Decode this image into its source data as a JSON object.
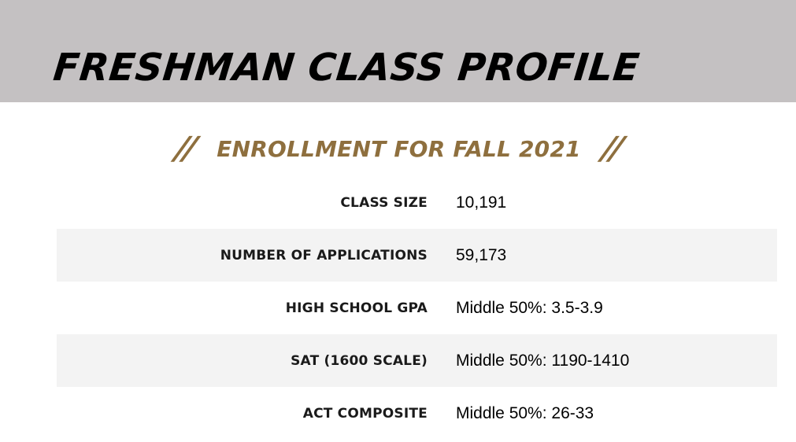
{
  "header": {
    "title": "FRESHMAN CLASS PROFILE"
  },
  "section": {
    "left_ornament": "//",
    "title": "ENROLLMENT FOR FALL 2021",
    "right_ornament": "//"
  },
  "colors": {
    "header_band": "#c4c1c2",
    "accent_gold": "#8e6f3e",
    "row_shade": "#f3f3f3"
  },
  "stats": [
    {
      "label": "CLASS SIZE",
      "value": "10,191"
    },
    {
      "label": "NUMBER OF APPLICATIONS",
      "value": "59,173"
    },
    {
      "label": "HIGH SCHOOL GPA",
      "value": "Middle 50%: 3.5-3.9"
    },
    {
      "label": "SAT (1600 SCALE)",
      "value": "Middle 50%: 1190-1410"
    },
    {
      "label": "ACT COMPOSITE",
      "value": "Middle 50%: 26-33"
    }
  ]
}
